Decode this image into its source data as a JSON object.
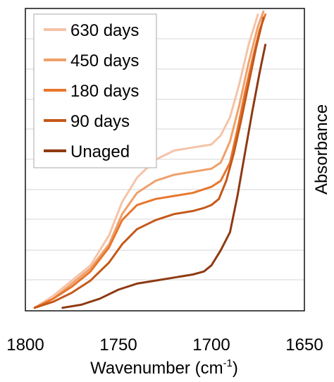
{
  "chart_data": {
    "type": "line",
    "xlabel": "Wavenumber (cm",
    "xlabel_sup": "-1",
    "xlabel_close": ")",
    "ylabel": "Absorbance",
    "xlim": [
      1800,
      1650
    ],
    "x_reversed": true,
    "ylim": [
      0,
      1
    ],
    "x_ticks": [
      "1800",
      "1750",
      "1700",
      "1650"
    ],
    "y_tick_labels_shown": false,
    "grid": "horizontal",
    "legend_position": "top-left",
    "series": [
      {
        "name": "630 days",
        "color": "#F5C3A8",
        "x": [
          1795,
          1785,
          1775,
          1765,
          1755,
          1748,
          1740,
          1730,
          1720,
          1710,
          1700,
          1695,
          1690,
          1685,
          1680,
          1675
        ],
        "y": [
          0.01,
          0.05,
          0.1,
          0.15,
          0.25,
          0.36,
          0.44,
          0.5,
          0.53,
          0.54,
          0.55,
          0.58,
          0.64,
          0.75,
          0.88,
          0.98
        ]
      },
      {
        "name": "450 days",
        "color": "#EFA06A",
        "x": [
          1795,
          1785,
          1775,
          1765,
          1755,
          1748,
          1740,
          1730,
          1720,
          1710,
          1700,
          1695,
          1690,
          1685,
          1680,
          1675,
          1672
        ],
        "y": [
          0.01,
          0.04,
          0.09,
          0.14,
          0.22,
          0.32,
          0.39,
          0.43,
          0.45,
          0.46,
          0.47,
          0.49,
          0.56,
          0.68,
          0.82,
          0.94,
          0.99
        ]
      },
      {
        "name": "180 days",
        "color": "#E8762D",
        "x": [
          1795,
          1785,
          1775,
          1765,
          1755,
          1748,
          1740,
          1730,
          1720,
          1710,
          1700,
          1695,
          1690,
          1686,
          1682,
          1678,
          1674,
          1671
        ],
        "y": [
          0.01,
          0.04,
          0.08,
          0.13,
          0.21,
          0.3,
          0.35,
          0.37,
          0.38,
          0.39,
          0.41,
          0.43,
          0.49,
          0.6,
          0.72,
          0.83,
          0.93,
          0.98
        ]
      },
      {
        "name": "90 days",
        "color": "#C4581B",
        "x": [
          1795,
          1785,
          1775,
          1765,
          1755,
          1748,
          1740,
          1730,
          1720,
          1710,
          1704,
          1700,
          1696,
          1692,
          1688,
          1684,
          1680,
          1676,
          1672
        ],
        "y": [
          0.01,
          0.03,
          0.06,
          0.1,
          0.16,
          0.22,
          0.27,
          0.3,
          0.32,
          0.33,
          0.34,
          0.35,
          0.37,
          0.43,
          0.52,
          0.63,
          0.75,
          0.87,
          0.97
        ]
      },
      {
        "name": "Unaged",
        "color": "#8E3A12",
        "x": [
          1780,
          1770,
          1760,
          1750,
          1740,
          1730,
          1720,
          1710,
          1704,
          1700,
          1695,
          1690,
          1686,
          1682,
          1678,
          1674,
          1671
        ],
        "y": [
          0.01,
          0.02,
          0.04,
          0.07,
          0.09,
          0.1,
          0.11,
          0.12,
          0.13,
          0.15,
          0.2,
          0.26,
          0.38,
          0.52,
          0.66,
          0.79,
          0.88
        ]
      }
    ]
  }
}
